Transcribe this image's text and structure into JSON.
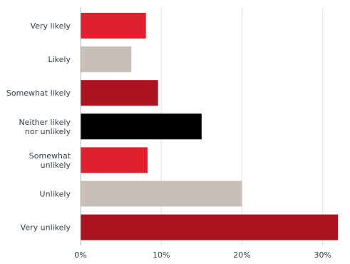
{
  "chart_data": {
    "type": "bar",
    "orientation": "horizontal",
    "categories": [
      [
        "Very likely"
      ],
      [
        "Likely"
      ],
      [
        "Somewhat likely"
      ],
      [
        "Neither likely",
        "nor unlikely"
      ],
      [
        "Somewhat",
        "unlikely"
      ],
      [
        "Unlikely"
      ],
      [
        "Very unlikely"
      ]
    ],
    "values": [
      8.1,
      6.3,
      9.6,
      15.0,
      8.3,
      20.0,
      31.9
    ],
    "bar_colors": [
      "#e21f2d",
      "#c8c0b8",
      "#a91420",
      "#000000",
      "#e21f2d",
      "#c8c0b8",
      "#a91420"
    ],
    "x_ticks": [
      0,
      10,
      20,
      30
    ],
    "x_tick_labels": [
      "0%",
      "10%",
      "20%",
      "30%"
    ],
    "xlim": [
      0,
      32.5
    ],
    "grid": true,
    "title": "",
    "xlabel": "",
    "ylabel": ""
  }
}
